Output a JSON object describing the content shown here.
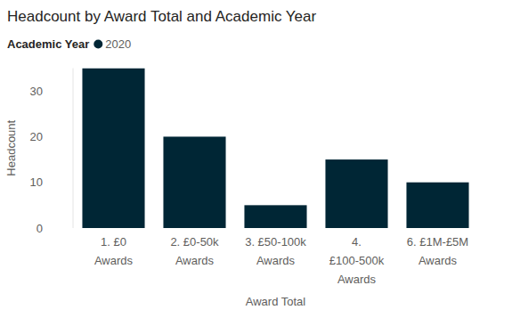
{
  "chart_data": {
    "type": "bar",
    "title": "Headcount by Award Total and Academic Year",
    "x_label": "Award Total",
    "y_label": "Headcount",
    "legend_title": "Academic Year",
    "categories": [
      "1. £0 Awards",
      "2. £0-50k Awards",
      "3. £50-100k Awards",
      "4. £100-500k Awards",
      "6. £1M-£5M Awards"
    ],
    "series": [
      {
        "name": "2020",
        "color": "#002635",
        "values": [
          35,
          20,
          5,
          15,
          10
        ]
      }
    ],
    "ylim": [
      0,
      35
    ],
    "yticks": [
      0,
      10,
      20,
      30
    ],
    "grid": false,
    "legend": "top-left"
  }
}
